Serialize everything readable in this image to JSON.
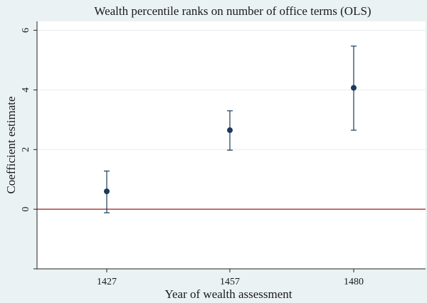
{
  "chart_data": {
    "type": "scatter",
    "title": "Wealth percentile ranks on number of office terms (OLS)",
    "xlabel": "Year of wealth assessment",
    "ylabel": "Coefficient estimate",
    "categories": [
      "1427",
      "1457",
      "1480"
    ],
    "series": [
      {
        "values": [
          0.6,
          2.65,
          4.07
        ],
        "ci_low": [
          -0.12,
          1.98,
          2.65
        ],
        "ci_high": [
          1.28,
          3.3,
          5.47
        ]
      }
    ],
    "ylim": [
      -2,
      6.3
    ],
    "yticks": [
      -2,
      0,
      2,
      4,
      6
    ],
    "ytick_labels": [
      "",
      "0",
      "2",
      "4",
      "6"
    ],
    "reference_line": 0,
    "grid": "horizontal",
    "colors": {
      "background": "#eaf2f3",
      "plot_background": "#ffffff",
      "grid": "#e6ecee",
      "marker": "#1b3a5c",
      "reference_line": "#a01c1c",
      "axis": "#222222"
    }
  }
}
